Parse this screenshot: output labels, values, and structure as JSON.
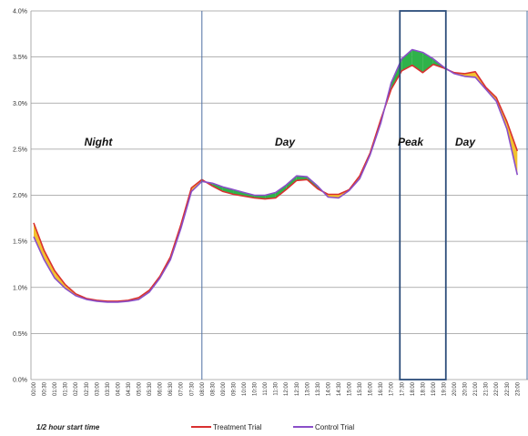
{
  "chart_data": {
    "type": "line",
    "ylim": [
      0,
      4
    ],
    "y_ticks": [
      "0.0%",
      "0.5%",
      "1.0%",
      "1.5%",
      "2.0%",
      "2.5%",
      "3.0%",
      "3.5%",
      "4.0%"
    ],
    "x": [
      "00:00",
      "00:30",
      "01:00",
      "01:30",
      "02:00",
      "02:30",
      "03:00",
      "03:30",
      "04:00",
      "04:30",
      "05:00",
      "05:30",
      "06:00",
      "06:30",
      "07:00",
      "07:30",
      "08:00",
      "08:30",
      "09:00",
      "09:30",
      "10:00",
      "10:30",
      "11:00",
      "11:30",
      "12:00",
      "12:30",
      "13:00",
      "13:30",
      "14:00",
      "14:30",
      "15:00",
      "15:30",
      "16:00",
      "16:30",
      "17:00",
      "17:30",
      "18:00",
      "18:30",
      "19:00",
      "19:30",
      "20:00",
      "20:30",
      "21:00",
      "21:30",
      "22:00",
      "22:30",
      "23:00"
    ],
    "xlabel": "1/2 hour start time",
    "grid": true,
    "legend": "bottom",
    "regions": [
      "Night",
      "Day",
      "Peak",
      "Day"
    ],
    "series": [
      {
        "name": "Treatment Trial",
        "color": "#d93030",
        "values": [
          1.7,
          1.4,
          1.18,
          1.03,
          0.93,
          0.88,
          0.86,
          0.85,
          0.85,
          0.86,
          0.89,
          0.97,
          1.12,
          1.33,
          1.68,
          2.08,
          2.17,
          2.1,
          2.04,
          2.01,
          1.99,
          1.97,
          1.96,
          1.97,
          2.06,
          2.16,
          2.17,
          2.07,
          2.01,
          2.01,
          2.06,
          2.21,
          2.46,
          2.82,
          3.15,
          3.35,
          3.41,
          3.33,
          3.42,
          3.38,
          3.33,
          3.32,
          3.34,
          3.17,
          3.06,
          2.8,
          2.48
        ]
      },
      {
        "name": "Control Trial",
        "color": "#8a4fc8",
        "values": [
          1.55,
          1.3,
          1.1,
          0.99,
          0.91,
          0.87,
          0.85,
          0.84,
          0.84,
          0.85,
          0.87,
          0.95,
          1.1,
          1.3,
          1.64,
          2.04,
          2.15,
          2.13,
          2.09,
          2.06,
          2.03,
          2.0,
          2.0,
          2.03,
          2.11,
          2.21,
          2.2,
          2.1,
          1.98,
          1.97,
          2.05,
          2.18,
          2.44,
          2.78,
          3.22,
          3.48,
          3.58,
          3.55,
          3.48,
          3.39,
          3.32,
          3.29,
          3.28,
          3.15,
          3.02,
          2.72,
          2.22
        ]
      }
    ],
    "fill_color_treatment_above": "#f2c12e",
    "fill_color_control_above": "#2fb24a",
    "divider_color": "#4d6fa3"
  }
}
